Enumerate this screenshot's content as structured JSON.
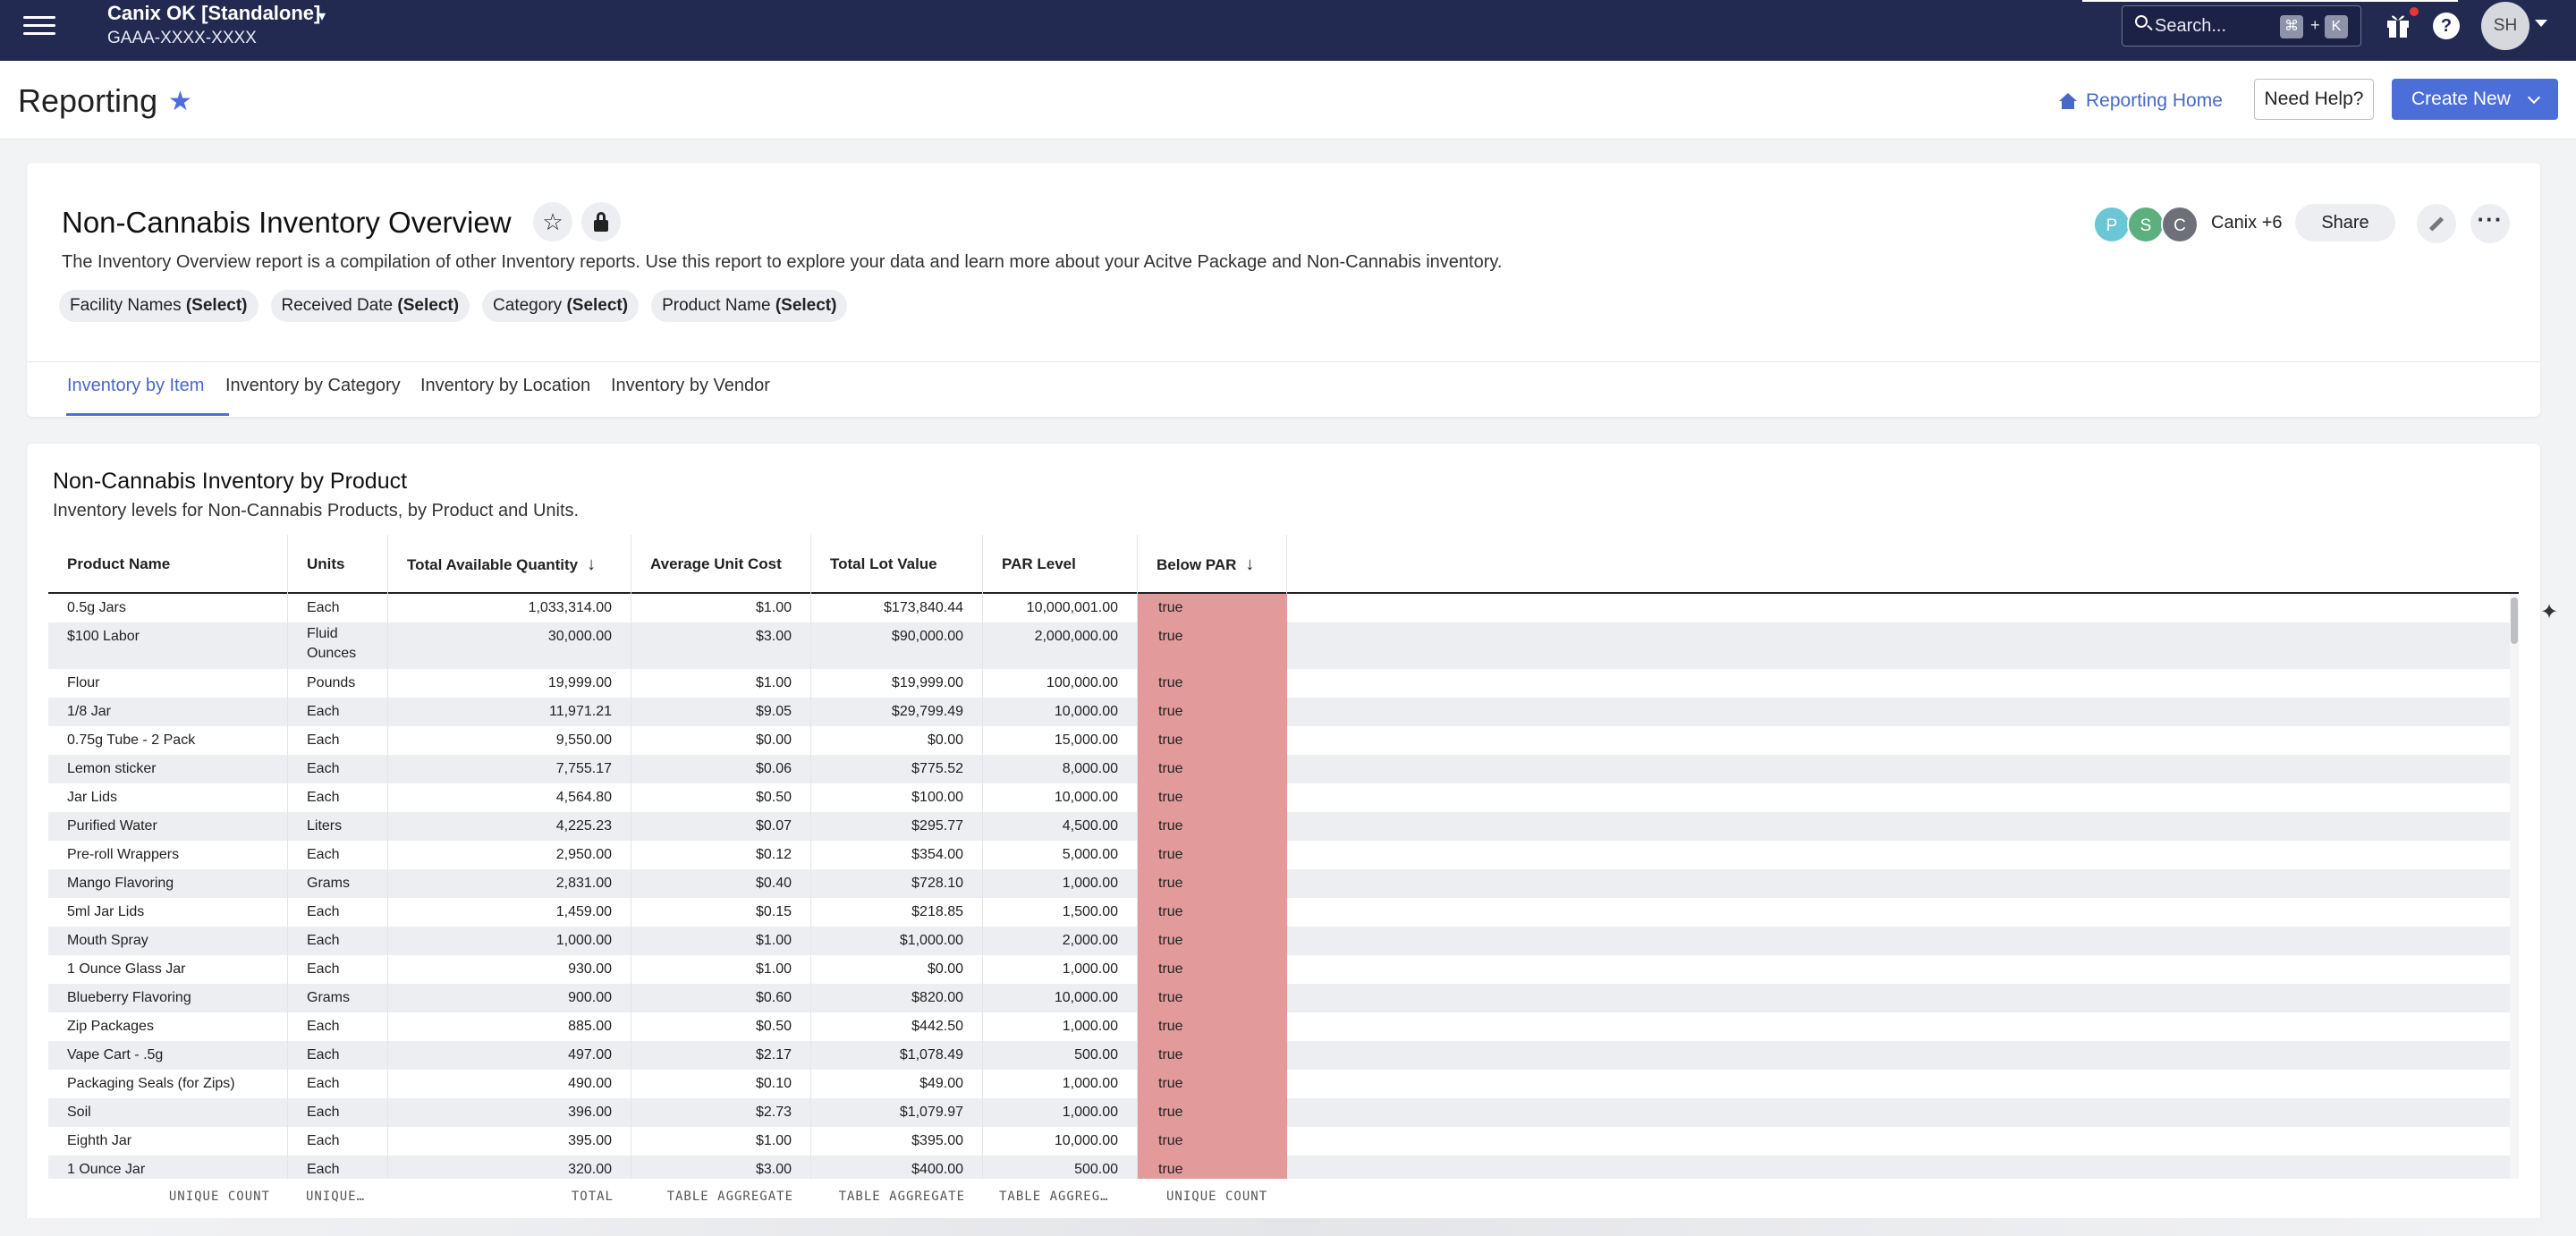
{
  "topbar": {
    "org_name": "Canix OK [Standalone]",
    "org_caret": "▾",
    "org_id": "GAAA-XXXX-XXXX",
    "search_placeholder": "Search...",
    "shortcut_cmd": "⌘",
    "shortcut_plus": "+",
    "shortcut_key": "K",
    "help": "?",
    "avatar": "SH",
    "bg_color": "#232a52"
  },
  "header": {
    "title": "Reporting",
    "star": "★",
    "reporting_home": "Reporting Home",
    "need_help": "Need Help?",
    "create_new": "Create New",
    "accent_color": "#4c6ed9"
  },
  "report": {
    "title": "Non-Cannabis Inventory Overview",
    "star": "☆",
    "description": "The Inventory Overview report is a compilation of other Inventory reports. Use this report to explore your data and learn more about your Acitve Package and Non-Cannabis inventory.",
    "filters": [
      {
        "name": "Facility Names",
        "value": "(Select)"
      },
      {
        "name": "Received Date",
        "value": "(Select)"
      },
      {
        "name": "Category",
        "value": "(Select)"
      },
      {
        "name": "Product Name",
        "value": "(Select)"
      }
    ],
    "collaborators": [
      {
        "initial": "P",
        "color": "#6bc6d6"
      },
      {
        "initial": "S",
        "color": "#5bb07e"
      },
      {
        "initial": "C",
        "color": "#6d7079"
      }
    ],
    "collaborators_more": "Canix +6",
    "share": "Share",
    "more": "···",
    "tabs": [
      "Inventory by Item",
      "Inventory by Category",
      "Inventory by Location",
      "Inventory by Vendor"
    ]
  },
  "table": {
    "title": "Non-Cannabis Inventory by Product",
    "subtitle": "Inventory levels for Non-Cannabis Products, by Product and Units.",
    "sort_arrow": "↓",
    "columns": [
      "Product Name",
      "Units",
      "Total Available Quantity",
      "Average Unit Cost",
      "Total Lot Value",
      "PAR Level",
      "Below PAR"
    ],
    "rows": [
      [
        "0.5g Jars",
        "Each",
        "1,033,314.00",
        "$1.00",
        "$173,840.44",
        "10,000,001.00",
        "true"
      ],
      [
        "$100 Labor",
        "Fluid Ounces",
        "30,000.00",
        "$3.00",
        "$90,000.00",
        "2,000,000.00",
        "true"
      ],
      [
        "Flour",
        "Pounds",
        "19,999.00",
        "$1.00",
        "$19,999.00",
        "100,000.00",
        "true"
      ],
      [
        "1/8 Jar",
        "Each",
        "11,971.21",
        "$9.05",
        "$29,799.49",
        "10,000.00",
        "true"
      ],
      [
        "0.75g Tube - 2 Pack",
        "Each",
        "9,550.00",
        "$0.00",
        "$0.00",
        "15,000.00",
        "true"
      ],
      [
        "Lemon sticker",
        "Each",
        "7,755.17",
        "$0.06",
        "$775.52",
        "8,000.00",
        "true"
      ],
      [
        "Jar Lids",
        "Each",
        "4,564.80",
        "$0.50",
        "$100.00",
        "10,000.00",
        "true"
      ],
      [
        "Purified Water",
        "Liters",
        "4,225.23",
        "$0.07",
        "$295.77",
        "4,500.00",
        "true"
      ],
      [
        "Pre-roll Wrappers",
        "Each",
        "2,950.00",
        "$0.12",
        "$354.00",
        "5,000.00",
        "true"
      ],
      [
        "Mango Flavoring",
        "Grams",
        "2,831.00",
        "$0.40",
        "$728.10",
        "1,000.00",
        "true"
      ],
      [
        "5ml Jar Lids",
        "Each",
        "1,459.00",
        "$0.15",
        "$218.85",
        "1,500.00",
        "true"
      ],
      [
        "Mouth Spray",
        "Each",
        "1,000.00",
        "$1.00",
        "$1,000.00",
        "2,000.00",
        "true"
      ],
      [
        "1 Ounce Glass Jar",
        "Each",
        "930.00",
        "$1.00",
        "$0.00",
        "1,000.00",
        "true"
      ],
      [
        "Blueberry Flavoring",
        "Grams",
        "900.00",
        "$0.60",
        "$820.00",
        "10,000.00",
        "true"
      ],
      [
        "Zip Packages",
        "Each",
        "885.00",
        "$0.50",
        "$442.50",
        "1,000.00",
        "true"
      ],
      [
        "Vape Cart - .5g",
        "Each",
        "497.00",
        "$2.17",
        "$1,078.49",
        "500.00",
        "true"
      ],
      [
        "Packaging Seals (for Zips)",
        "Each",
        "490.00",
        "$0.10",
        "$49.00",
        "1,000.00",
        "true"
      ],
      [
        "Soil",
        "Each",
        "396.00",
        "$2.73",
        "$1,079.97",
        "1,000.00",
        "true"
      ],
      [
        "Eighth Jar",
        "Each",
        "395.00",
        "$1.00",
        "$395.00",
        "10,000.00",
        "true"
      ],
      [
        "1 Ounce Jar",
        "Each",
        "320.00",
        "$3.00",
        "$400.00",
        "500.00",
        "true"
      ]
    ],
    "footer": [
      "UNIQUE COUNT",
      "UNIQUE…",
      "TOTAL",
      "TABLE AGGREGATE",
      "TABLE AGGREGATE",
      "TABLE AGGREG…",
      "UNIQUE COUNT"
    ],
    "below_par_color": "#e39a9b"
  }
}
